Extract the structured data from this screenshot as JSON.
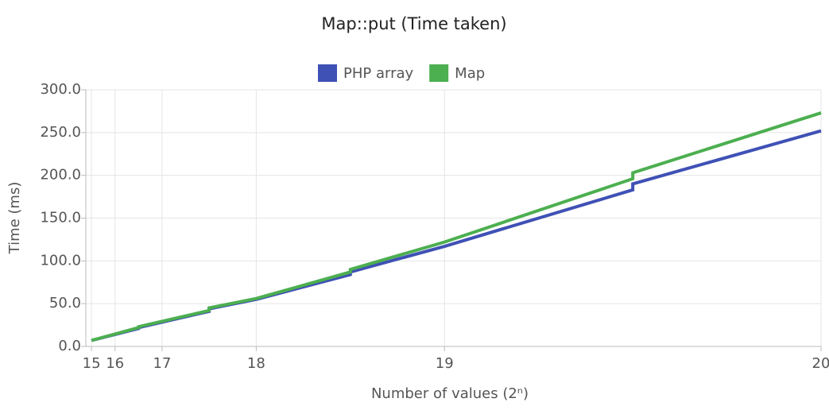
{
  "chart_data": {
    "type": "line",
    "title": "Map::put (Time taken)",
    "x_label": "Number of values (2ⁿ)",
    "y_label": "Time (ms)",
    "x": [
      32768,
      98304,
      98304,
      196608,
      196608,
      262144,
      393216,
      393216,
      524288,
      786432,
      786432,
      1048576
    ],
    "series": [
      {
        "name": "PHP array",
        "color": "#3f51b5",
        "values": [
          7,
          21,
          22,
          41,
          44,
          55,
          84,
          87,
          117,
          183,
          190,
          252
        ]
      },
      {
        "name": "Map",
        "color": "#4caf50",
        "values": [
          7,
          22,
          23,
          42,
          45,
          56,
          87,
          90,
          122,
          196,
          203,
          273
        ]
      }
    ],
    "xlim": [
      24920,
      1048576
    ],
    "xticks": [
      {
        "value": 32768,
        "label": "15"
      },
      {
        "value": 65536,
        "label": "16"
      },
      {
        "value": 131072,
        "label": "17"
      },
      {
        "value": 262144,
        "label": "18"
      },
      {
        "value": 524288,
        "label": "19"
      },
      {
        "value": 1048576,
        "label": "20"
      }
    ],
    "ylim": [
      0,
      300
    ],
    "yticks": [
      {
        "value": 0,
        "label": "0.0"
      },
      {
        "value": 50,
        "label": "50.0"
      },
      {
        "value": 100,
        "label": "100.0"
      },
      {
        "value": 150,
        "label": "150.0"
      },
      {
        "value": 200,
        "label": "200.0"
      },
      {
        "value": 250,
        "label": "250.0"
      },
      {
        "value": 300,
        "label": "300.0"
      }
    ],
    "grid": true
  }
}
